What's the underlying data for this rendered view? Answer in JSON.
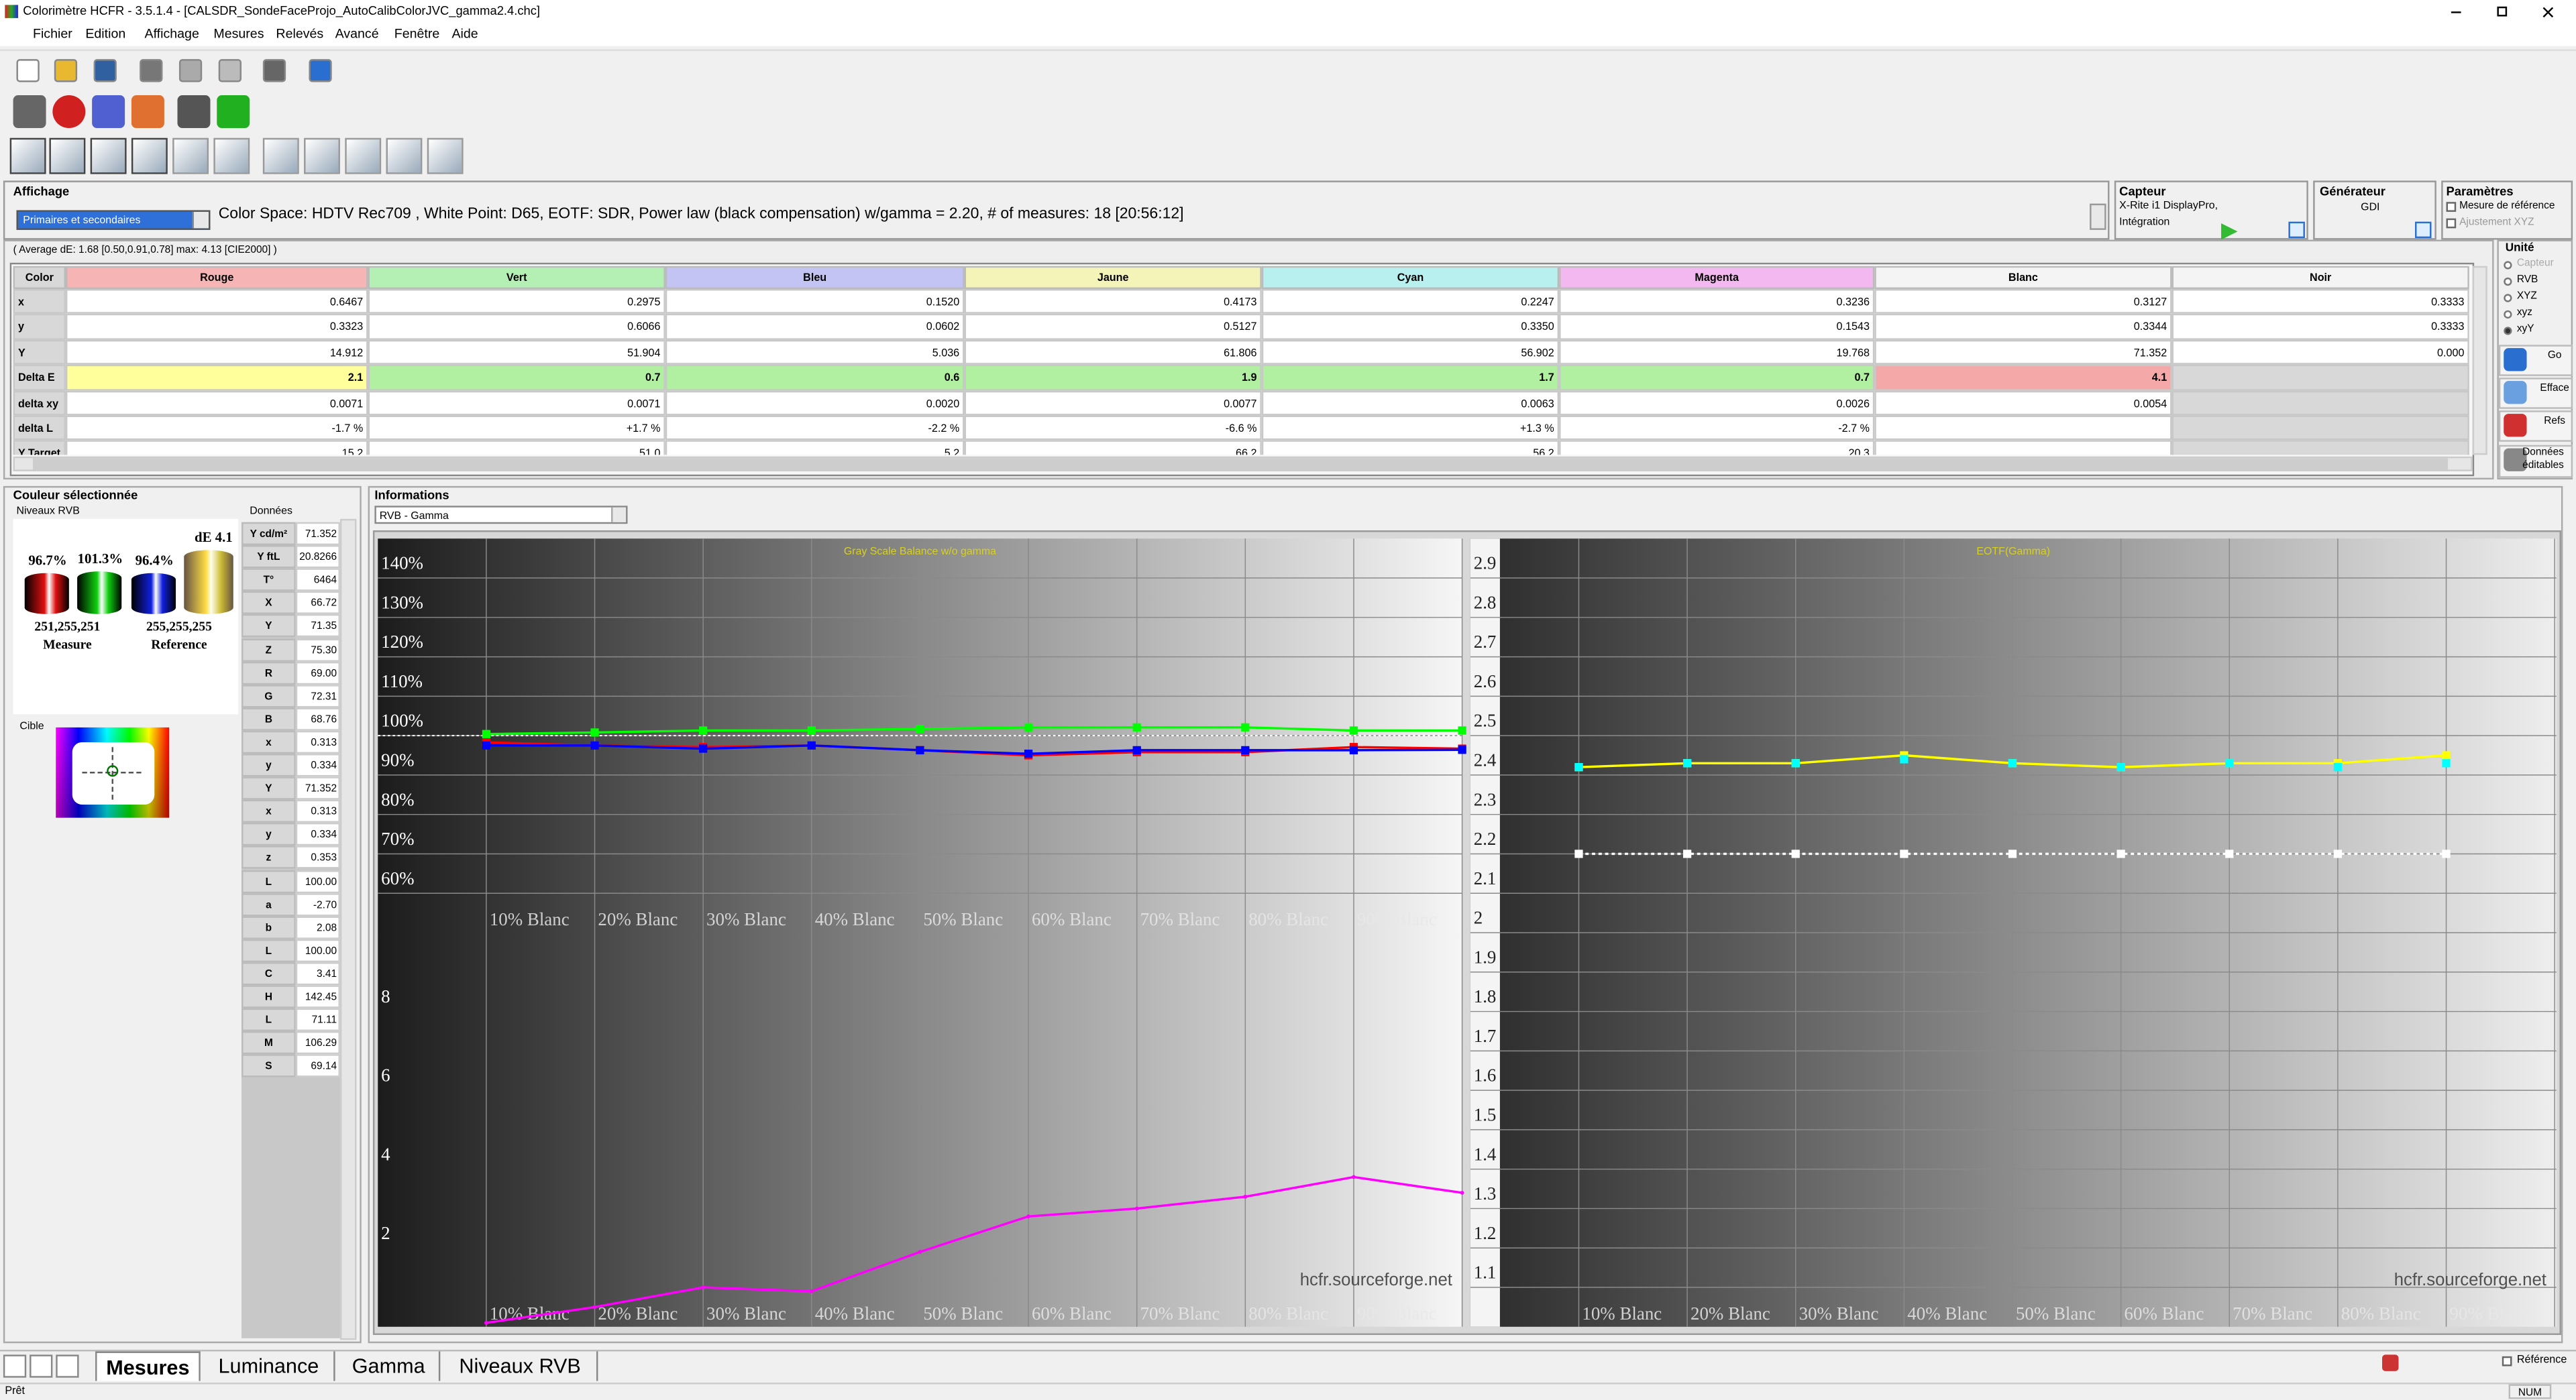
{
  "window": {
    "title": "Colorimètre HCFR - 3.5.1.4 - [CALSDR_SondeFaceProjo_AutoCalibColorJVC_gamma2.4.chc]",
    "status": "Prêt",
    "num": "NUM"
  },
  "menu": [
    "Fichier",
    "Edition",
    "Affichage",
    "Mesures",
    "Relevés",
    "Avancé",
    "Fenêtre",
    "Aide"
  ],
  "display": {
    "label": "Affichage",
    "selection": "Primaires et secondaires",
    "info": "Color Space: HDTV Rec709 , White Point: D65, EOTF:  SDR, Power law (black compensation) w/gamma = 2.20, # of measures: 18 [20:56:12]"
  },
  "sensor": {
    "label": "Capteur",
    "name": "X-Rite i1 DisplayPro,",
    "mode": "Intégration"
  },
  "generator": {
    "label": "Générateur",
    "name": "GDI"
  },
  "parameters": {
    "label": "Paramètres",
    "options": [
      "Mesure de référence",
      "Ajustement XYZ"
    ]
  },
  "units": {
    "label": "Unité",
    "options": [
      "Capteur",
      "RVB",
      "XYZ",
      "xyz",
      "xyY"
    ]
  },
  "actions": [
    "Go",
    "Efface",
    "Refs",
    "Données éditables"
  ],
  "summary": "( Average dE: 1.68 [0.50,0.91,0.78] max: 4.13 [CIE2000] )",
  "table": {
    "header": [
      "Color",
      "Rouge",
      "Vert",
      "Bleu",
      "Jaune",
      "Cyan",
      "Magenta",
      "Blanc",
      "Noir"
    ],
    "header_colors": [
      "#d8d8d8",
      "#f6b4b4",
      "#b4f0b4",
      "#c4c4f4",
      "#f4f4b8",
      "#b8f0f0",
      "#f4b8f0",
      "#f4f4f4",
      "#f4f4f4"
    ],
    "delta_e_colors": [
      "#ffff9c",
      "#b0f0a0",
      "#b0f0a0",
      "#b0f0a0",
      "#b0f0a0",
      "#b0f0a0",
      "#f4a8a8",
      "#d8d8d8"
    ],
    "rows": [
      [
        "x",
        "0.6467",
        "0.2975",
        "0.1520",
        "0.4173",
        "0.2247",
        "0.3236",
        "0.3127",
        "0.3333"
      ],
      [
        "y",
        "0.3323",
        "0.6066",
        "0.0602",
        "0.5127",
        "0.3350",
        "0.1543",
        "0.3344",
        "0.3333"
      ],
      [
        "Y",
        "14.912",
        "51.904",
        "5.036",
        "61.806",
        "56.902",
        "19.768",
        "71.352",
        "0.000"
      ],
      [
        "Delta E",
        "2.1",
        "0.7",
        "0.6",
        "1.9",
        "1.7",
        "0.7",
        "4.1",
        null
      ],
      [
        "delta xy",
        "0.0071",
        "0.0071",
        "0.0020",
        "0.0077",
        "0.0063",
        "0.0026",
        "0.0054",
        null
      ],
      [
        "delta L",
        "-1.7 %",
        "+1.7 %",
        "-2.2 %",
        "-6.6 %",
        "+1.3 %",
        "-2.7 %",
        null,
        null
      ],
      [
        "Y Target",
        "15.2",
        "51.0",
        "5.2",
        "66.2",
        "56.2",
        "20.3",
        null,
        null
      ]
    ]
  },
  "selected": {
    "label": "Couleur sélectionnée",
    "levels_label": "Niveaux RVB",
    "levels": {
      "values": [
        96.7,
        101.3,
        96.4
      ],
      "value_labels": [
        "96.7%",
        "101.3%",
        "96.4%"
      ],
      "colors": [
        "#e01010",
        "#10d010",
        "#1020e0"
      ]
    },
    "de_label": "dE 4.1",
    "measure": "251,255,251",
    "measure_label": "Measure",
    "reference": "255,255,255",
    "reference_label": "Reference",
    "target_label": "Cible"
  },
  "data_panel": {
    "label": "Données",
    "rows": [
      [
        "Y cd/m²",
        "71.352"
      ],
      [
        "Y ftL",
        "20.8266"
      ],
      [
        "T°",
        "6464"
      ],
      [
        "X",
        "66.72"
      ],
      [
        "Y",
        "71.35"
      ],
      [
        "Z",
        "75.30"
      ],
      [
        "R",
        "69.00"
      ],
      [
        "G",
        "72.31"
      ],
      [
        "B",
        "68.76"
      ],
      [
        "x",
        "0.313"
      ],
      [
        "y",
        "0.334"
      ],
      [
        "Y",
        "71.352"
      ],
      [
        "x",
        "0.313"
      ],
      [
        "y",
        "0.334"
      ],
      [
        "z",
        "0.353"
      ],
      [
        "L",
        "100.00"
      ],
      [
        "a",
        "-2.70"
      ],
      [
        "b",
        "2.08"
      ],
      [
        "L",
        "100.00"
      ],
      [
        "C",
        "3.41"
      ],
      [
        "H",
        "142.45"
      ],
      [
        "L",
        "71.11"
      ],
      [
        "M",
        "106.29"
      ],
      [
        "S",
        "69.14"
      ]
    ]
  },
  "info": {
    "label": "Informations",
    "selection": "RVB - Gamma"
  },
  "gray_chart": {
    "type": "line",
    "title": "Gray Scale Balance w/o gamma",
    "categories": [
      "10% Blanc",
      "20% Blanc",
      "30% Blanc",
      "40% Blanc",
      "50% Blanc",
      "60% Blanc",
      "70% Blanc",
      "80% Blanc",
      "90% Blanc",
      null
    ],
    "ylim": [
      50,
      150
    ],
    "yticks": [
      {
        "value": 60,
        "label": "60%"
      },
      {
        "value": 70,
        "label": "70%"
      },
      {
        "value": 80,
        "label": "80%"
      },
      {
        "value": 90,
        "label": "90%"
      },
      {
        "value": 100,
        "label": "100%"
      },
      {
        "value": 110,
        "label": "110%"
      },
      {
        "value": 120,
        "label": "120%"
      },
      {
        "value": 130,
        "label": "130%"
      },
      {
        "value": 140,
        "label": "140%"
      }
    ],
    "reference_line": 100,
    "series": [
      {
        "color": "#00ff00",
        "values": [
          100.4,
          100.8,
          101.3,
          101.3,
          101.7,
          102.1,
          102.1,
          102.1,
          101.3,
          101.3
        ]
      },
      {
        "color": "#ff0000",
        "values": [
          98.3,
          97.5,
          97.1,
          97.5,
          96.3,
          95.0,
          95.8,
          95.8,
          97.1,
          96.7
        ]
      },
      {
        "color": "#0000ff",
        "values": [
          97.5,
          97.5,
          96.7,
          97.5,
          96.3,
          95.4,
          96.3,
          96.3,
          96.3,
          96.4
        ]
      }
    ],
    "de_ylim": [
      0,
      10
    ],
    "de_yticks": [
      2,
      4,
      6,
      8
    ],
    "de_series": {
      "color": "#ff00ff",
      "values": [
        0.1,
        0.5,
        1.0,
        0.9,
        1.9,
        2.8,
        3.0,
        3.3,
        3.8,
        3.4
      ]
    },
    "watermark": "hcfr.sourceforge.net"
  },
  "eotf_chart": {
    "type": "line",
    "title": "EOTF(Gamma)",
    "categories": [
      "10% Blanc",
      "20% Blanc",
      "30% Blanc",
      "40% Blanc",
      "50% Blanc",
      "60% Blanc",
      "70% Blanc",
      "80% Blanc",
      "90% Blanc"
    ],
    "ylim": [
      1.0,
      3.0
    ],
    "yticks": [
      1.1,
      1.2,
      1.3,
      1.4,
      1.5,
      1.6,
      1.7,
      1.8,
      1.9,
      2,
      2.1,
      2.2,
      2.3,
      2.4,
      2.5,
      2.6,
      2.7,
      2.8,
      2.9
    ],
    "series": [
      {
        "color": "#ffff00",
        "values": [
          2.42,
          2.43,
          2.43,
          2.45,
          2.43,
          2.42,
          2.43,
          2.43,
          2.45
        ]
      },
      {
        "color": "#00ffff",
        "line": false,
        "values": [
          2.42,
          2.43,
          2.43,
          2.44,
          2.43,
          2.42,
          2.43,
          2.42,
          2.43
        ]
      },
      {
        "color": "#ffffff",
        "dashed": true,
        "values": [
          2.2,
          2.2,
          2.2,
          2.2,
          2.2,
          2.2,
          2.2,
          2.2,
          2.2
        ]
      }
    ],
    "watermark": "hcfr.sourceforge.net"
  },
  "tabs": [
    "Mesures",
    "Luminance",
    "Gamma",
    "Niveaux RVB"
  ],
  "reference_check": "Référence"
}
